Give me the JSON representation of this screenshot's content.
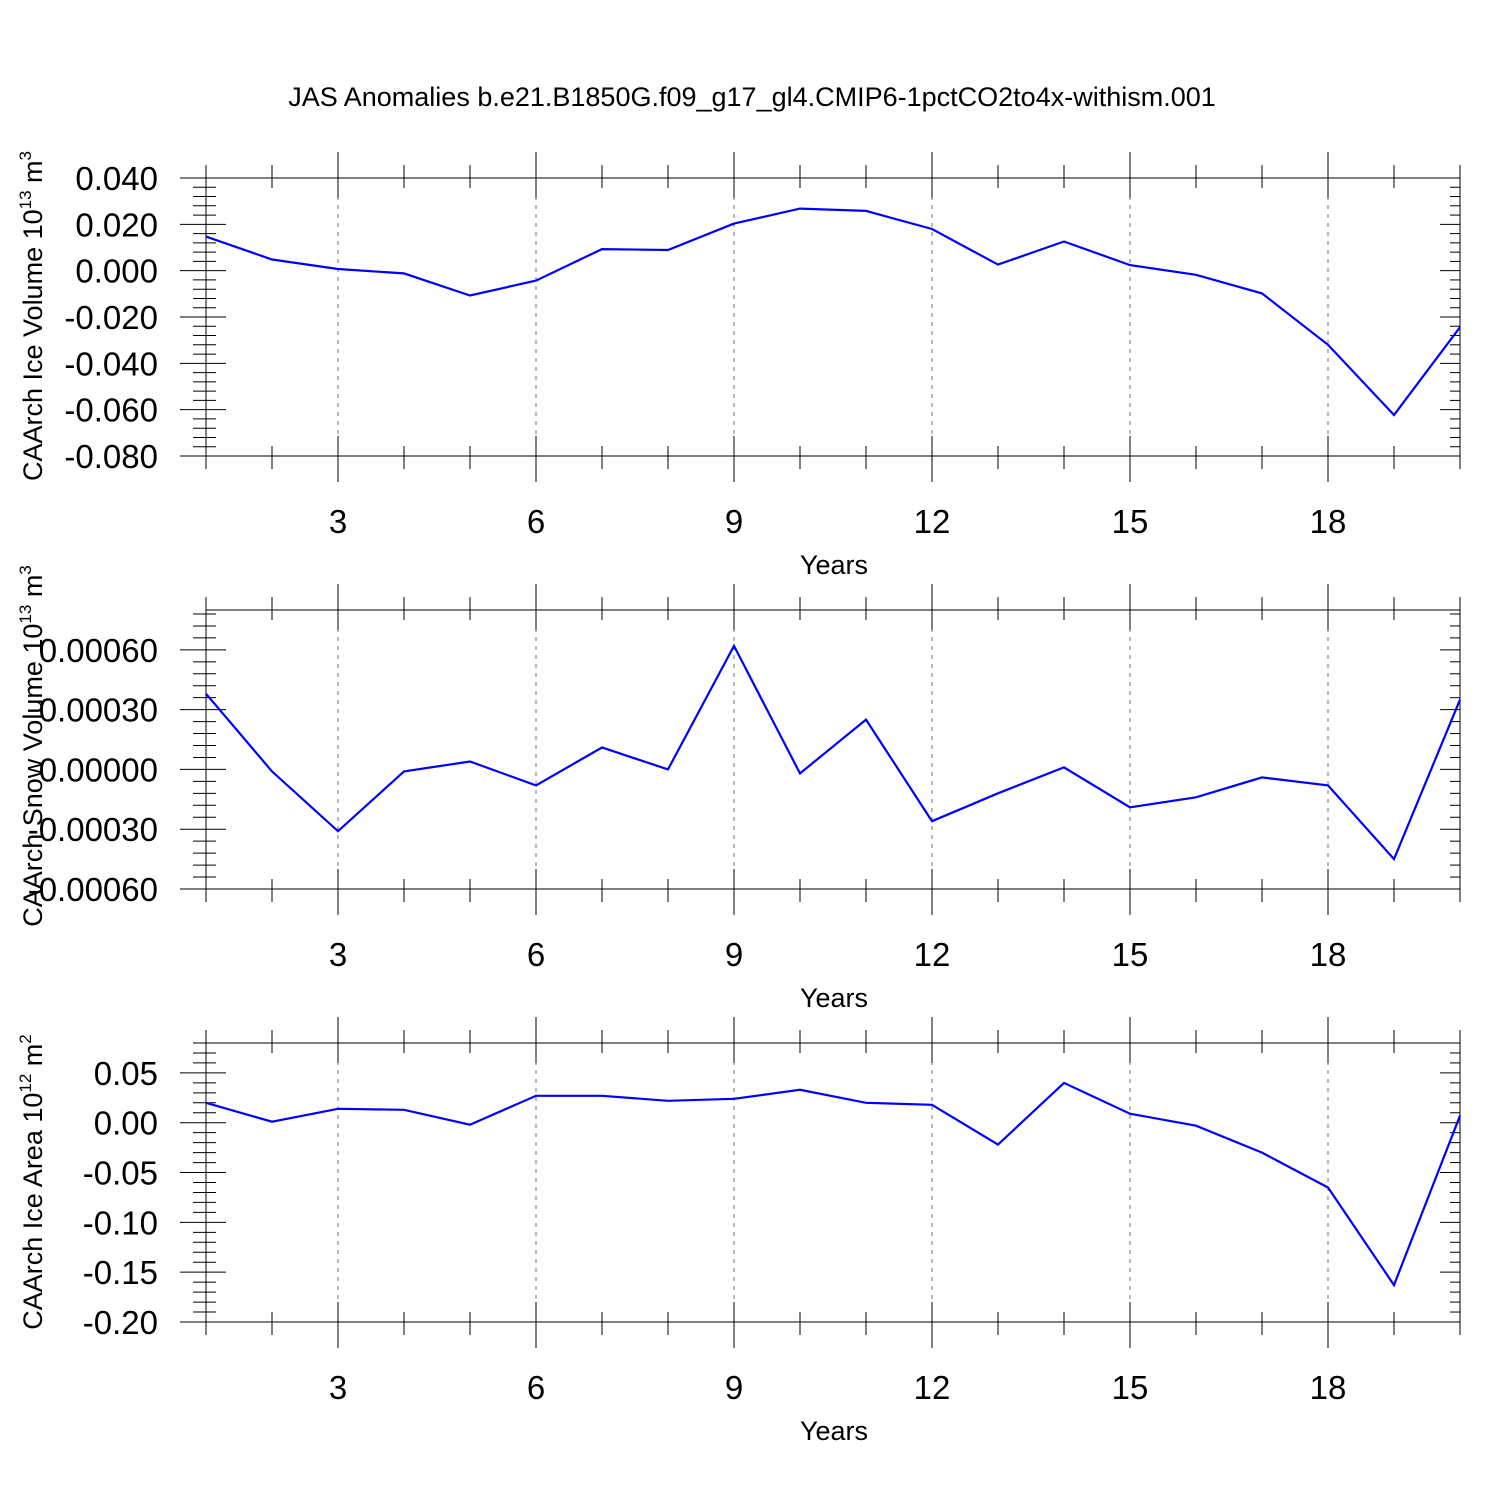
{
  "title": "JAS Anomalies b.e21.B1850G.f09_g17_gl4.CMIP6-1pctCO2to4x-withism.001",
  "chart_data": [
    {
      "type": "line",
      "xlabel": "Years",
      "ylabel": {
        "prefix": "CAArch Ice Volume 10",
        "exp": "13",
        "unit": " m",
        "unit_exp": "3"
      },
      "xlim": [
        1,
        20
      ],
      "ylim": [
        -0.08,
        0.04
      ],
      "xticks": [
        3,
        6,
        9,
        12,
        15,
        18
      ],
      "xtick_labels": [
        "3",
        "6",
        "9",
        "12",
        "15",
        "18"
      ],
      "yticks": [
        -0.08,
        -0.06,
        -0.04,
        -0.02,
        0.0,
        0.02,
        0.04
      ],
      "ytick_labels": [
        "-0.080",
        "-0.060",
        "-0.040",
        "-0.020",
        "0.000",
        "0.020",
        "0.040"
      ],
      "grid": "vertical dashed at major x ticks",
      "series": [
        {
          "color": "#0000ff",
          "x": [
            1,
            2,
            3,
            4,
            5,
            6,
            7,
            8,
            9,
            10,
            11,
            12,
            13,
            14,
            15,
            16,
            17,
            18,
            19,
            20
          ],
          "y": [
            0.0147,
            0.0048,
            0.0007,
            -0.0012,
            -0.0107,
            -0.0043,
            0.0093,
            0.0089,
            0.0203,
            0.0268,
            0.0258,
            0.018,
            0.0026,
            0.0126,
            0.0024,
            -0.0018,
            -0.0098,
            -0.032,
            -0.0623,
            -0.0244
          ]
        }
      ]
    },
    {
      "type": "line",
      "xlabel": "Years",
      "ylabel": {
        "prefix": "CAArch Snow Volume 10",
        "exp": "13",
        "unit": " m",
        "unit_exp": "3"
      },
      "xlim": [
        1,
        20
      ],
      "ylim": [
        -0.0006,
        0.0008
      ],
      "xticks": [
        3,
        6,
        9,
        12,
        15,
        18
      ],
      "xtick_labels": [
        "3",
        "6",
        "9",
        "12",
        "15",
        "18"
      ],
      "yticks": [
        -0.0006,
        -0.0003,
        0.0,
        0.0003,
        0.0006
      ],
      "ytick_labels": [
        "-0.00060",
        "-0.00030",
        "0.00000",
        "0.00030",
        "0.00060"
      ],
      "grid": "vertical dashed at major x ticks",
      "series": [
        {
          "color": "#0000ff",
          "x": [
            1,
            2,
            3,
            4,
            5,
            6,
            7,
            8,
            9,
            10,
            11,
            12,
            13,
            14,
            15,
            16,
            17,
            18,
            19,
            20
          ],
          "y": [
            0.00038,
            -1e-05,
            -0.00031,
            -1e-05,
            4e-05,
            -8e-05,
            0.00011,
            0.0,
            0.00062,
            -2e-05,
            0.00025,
            -0.00026,
            -0.00012,
            1e-05,
            -0.00019,
            -0.00014,
            -4e-05,
            -8e-05,
            -0.00045,
            0.00035
          ]
        }
      ]
    },
    {
      "type": "line",
      "xlabel": "Years",
      "ylabel": {
        "prefix": "CAArch Ice Area 10",
        "exp": "12",
        "unit": " m",
        "unit_exp": "2"
      },
      "xlim": [
        1,
        20
      ],
      "ylim": [
        -0.2,
        0.08
      ],
      "xticks": [
        3,
        6,
        9,
        12,
        15,
        18
      ],
      "xtick_labels": [
        "3",
        "6",
        "9",
        "12",
        "15",
        "18"
      ],
      "yticks": [
        -0.2,
        -0.15,
        -0.1,
        -0.05,
        0.0,
        0.05
      ],
      "ytick_labels": [
        "-0.20",
        "-0.15",
        "-0.10",
        "-0.05",
        "0.00",
        "0.05"
      ],
      "grid": "vertical dashed at major x ticks",
      "series": [
        {
          "color": "#0000ff",
          "x": [
            1,
            2,
            3,
            4,
            5,
            6,
            7,
            8,
            9,
            10,
            11,
            12,
            13,
            14,
            15,
            16,
            17,
            18,
            19,
            20
          ],
          "y": [
            0.02,
            0.001,
            0.014,
            0.013,
            -0.002,
            0.027,
            0.027,
            0.022,
            0.024,
            0.033,
            0.02,
            0.018,
            -0.022,
            0.04,
            0.009,
            -0.003,
            -0.03,
            -0.065,
            -0.163,
            0.007
          ]
        }
      ]
    }
  ]
}
